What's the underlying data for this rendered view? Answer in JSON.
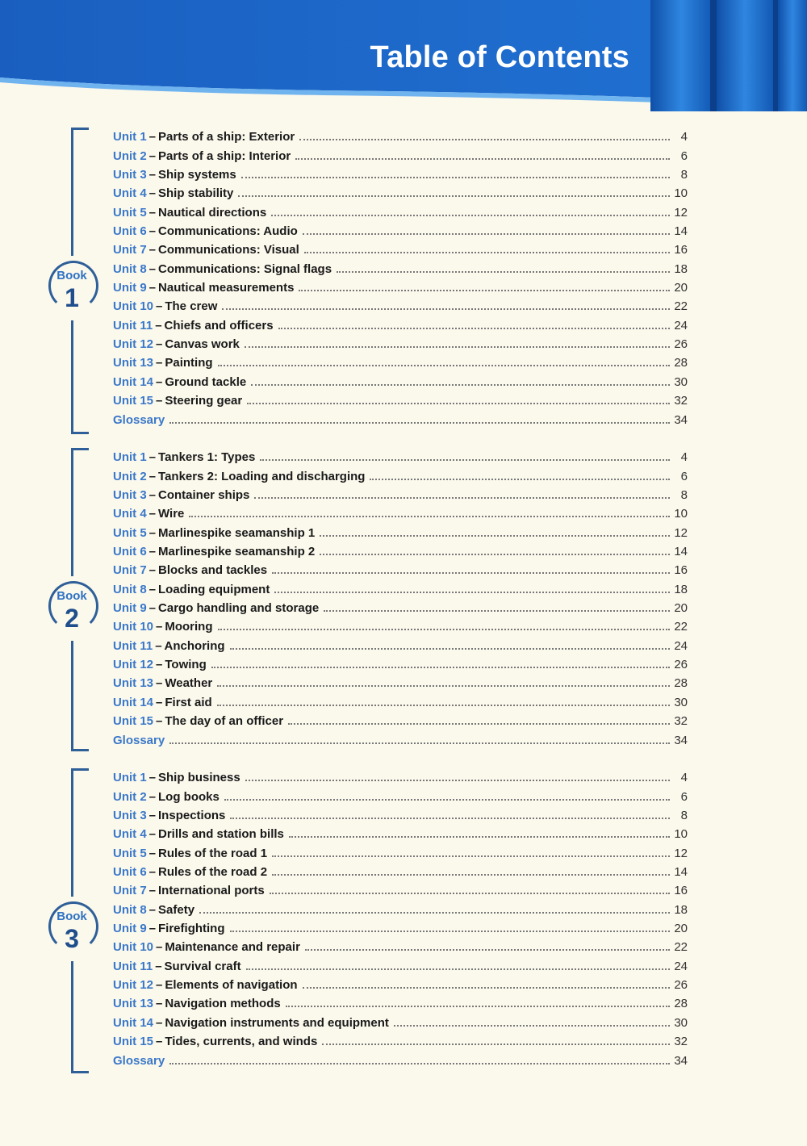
{
  "title": "Table of Contents",
  "colors": {
    "header_blue": "#1a62c2",
    "accent_blue": "#3a78c9",
    "dark_blue": "#1f4e8c",
    "background": "#fbf8ec"
  },
  "books": [
    {
      "badge_word": "Book",
      "number": "1",
      "entries": [
        {
          "label": "Unit 1",
          "title": "Parts of a ship: Exterior",
          "page": "4"
        },
        {
          "label": "Unit 2",
          "title": "Parts of a ship: Interior",
          "page": "6"
        },
        {
          "label": "Unit 3",
          "title": "Ship systems",
          "page": "8"
        },
        {
          "label": "Unit 4",
          "title": "Ship stability",
          "page": "10"
        },
        {
          "label": "Unit 5",
          "title": "Nautical directions",
          "page": "12"
        },
        {
          "label": "Unit 6",
          "title": "Communications: Audio",
          "page": "14"
        },
        {
          "label": "Unit 7",
          "title": "Communications: Visual",
          "page": "16"
        },
        {
          "label": "Unit 8",
          "title": "Communications: Signal flags",
          "page": "18"
        },
        {
          "label": "Unit 9",
          "title": "Nautical measurements",
          "page": "20"
        },
        {
          "label": "Unit 10",
          "title": "The crew",
          "page": "22"
        },
        {
          "label": "Unit 11",
          "title": "Chiefs and officers",
          "page": "24"
        },
        {
          "label": "Unit 12",
          "title": "Canvas work",
          "page": "26"
        },
        {
          "label": "Unit 13",
          "title": "Painting",
          "page": "28"
        },
        {
          "label": "Unit 14",
          "title": "Ground tackle",
          "page": "30"
        },
        {
          "label": "Unit 15",
          "title": "Steering gear",
          "page": "32"
        },
        {
          "label": "Glossary",
          "title": "",
          "page": "34"
        }
      ]
    },
    {
      "badge_word": "Book",
      "number": "2",
      "entries": [
        {
          "label": "Unit 1",
          "title": "Tankers 1: Types",
          "page": "4"
        },
        {
          "label": "Unit 2",
          "title": "Tankers 2: Loading and discharging",
          "page": "6"
        },
        {
          "label": "Unit 3",
          "title": "Container ships",
          "page": "8"
        },
        {
          "label": "Unit 4",
          "title": "Wire",
          "page": "10"
        },
        {
          "label": "Unit 5",
          "title": "Marlinespike seamanship 1",
          "page": "12"
        },
        {
          "label": "Unit 6",
          "title": "Marlinespike seamanship 2",
          "page": "14"
        },
        {
          "label": "Unit 7",
          "title": "Blocks and tackles",
          "page": "16"
        },
        {
          "label": "Unit 8",
          "title": "Loading equipment",
          "page": "18"
        },
        {
          "label": "Unit 9",
          "title": "Cargo handling and storage",
          "page": "20"
        },
        {
          "label": "Unit 10",
          "title": "Mooring",
          "page": "22"
        },
        {
          "label": "Unit 11",
          "title": "Anchoring",
          "page": "24"
        },
        {
          "label": "Unit 12",
          "title": "Towing",
          "page": "26"
        },
        {
          "label": "Unit 13",
          "title": "Weather",
          "page": "28"
        },
        {
          "label": "Unit 14",
          "title": "First aid",
          "page": "30"
        },
        {
          "label": "Unit 15",
          "title": "The day of an officer",
          "page": "32"
        },
        {
          "label": "Glossary",
          "title": "",
          "page": "34"
        }
      ]
    },
    {
      "badge_word": "Book",
      "number": "3",
      "entries": [
        {
          "label": "Unit 1",
          "title": "Ship business",
          "page": "4"
        },
        {
          "label": "Unit 2",
          "title": "Log books",
          "page": "6"
        },
        {
          "label": "Unit 3",
          "title": "Inspections",
          "page": "8"
        },
        {
          "label": "Unit 4",
          "title": "Drills and station bills",
          "page": "10"
        },
        {
          "label": "Unit 5",
          "title": "Rules of the road 1",
          "page": "12"
        },
        {
          "label": "Unit 6",
          "title": "Rules of the road 2",
          "page": "14"
        },
        {
          "label": "Unit 7",
          "title": "International ports",
          "page": "16"
        },
        {
          "label": "Unit 8",
          "title": "Safety",
          "page": "18"
        },
        {
          "label": "Unit 9",
          "title": "Firefighting",
          "page": "20"
        },
        {
          "label": "Unit 10",
          "title": "Maintenance and repair",
          "page": "22"
        },
        {
          "label": "Unit 11",
          "title": "Survival craft",
          "page": "24"
        },
        {
          "label": "Unit 12",
          "title": "Elements of navigation",
          "page": "26"
        },
        {
          "label": "Unit 13",
          "title": "Navigation methods",
          "page": "28"
        },
        {
          "label": "Unit 14",
          "title": "Navigation instruments and equipment",
          "page": "30"
        },
        {
          "label": "Unit 15",
          "title": "Tides, currents, and winds",
          "page": "32"
        },
        {
          "label": "Glossary",
          "title": "",
          "page": "34"
        }
      ]
    }
  ]
}
